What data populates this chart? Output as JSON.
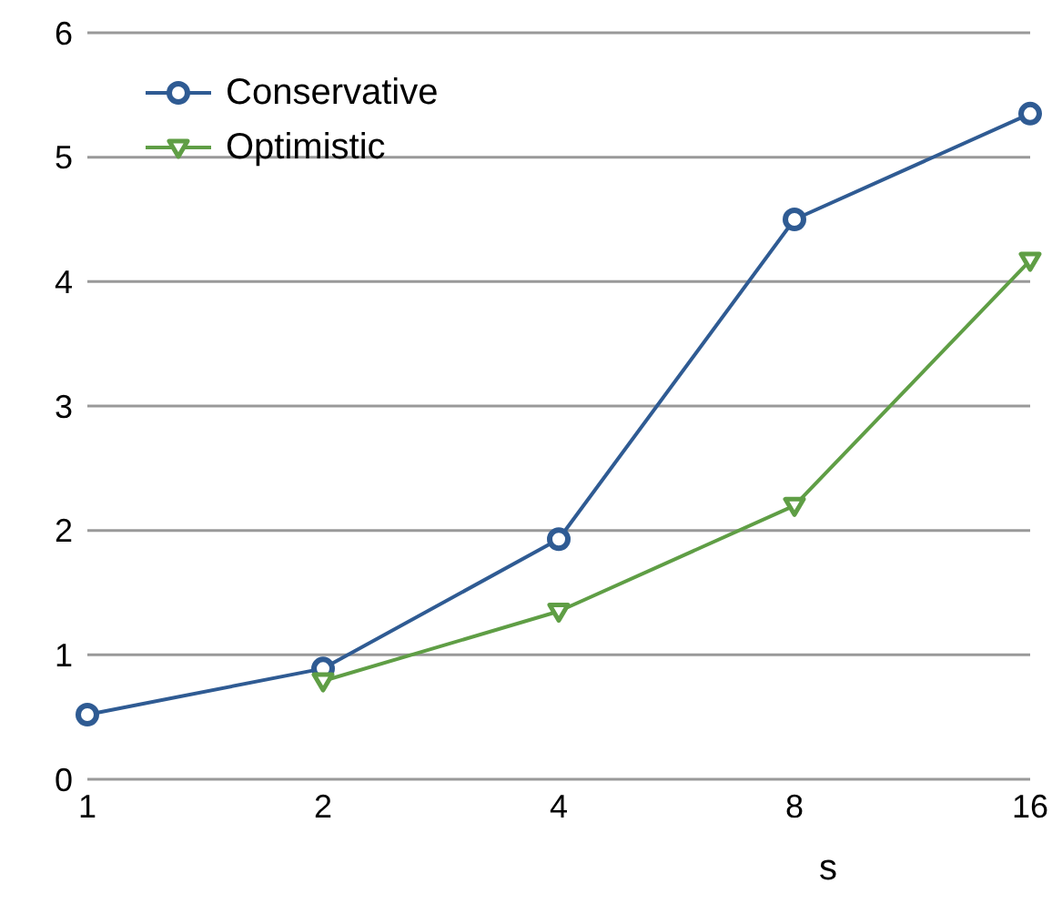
{
  "chart_data": {
    "type": "line",
    "xlabel": "s",
    "categories": [
      "1",
      "2",
      "4",
      "8",
      "16"
    ],
    "series": [
      {
        "name": "Conservative",
        "color": "#2f5b93",
        "marker": "circle",
        "values": [
          0.52,
          0.89,
          1.93,
          4.5,
          5.35
        ]
      },
      {
        "name": "Optimistic",
        "color": "#5f9e45",
        "marker": "triangle",
        "values": [
          null,
          0.79,
          1.35,
          2.2,
          4.17
        ]
      }
    ],
    "ylim": [
      0,
      6
    ],
    "yticks": [
      0,
      1,
      2,
      3,
      4,
      5,
      6
    ],
    "grid": "y",
    "legend": "top left",
    "line_style": "solid"
  }
}
